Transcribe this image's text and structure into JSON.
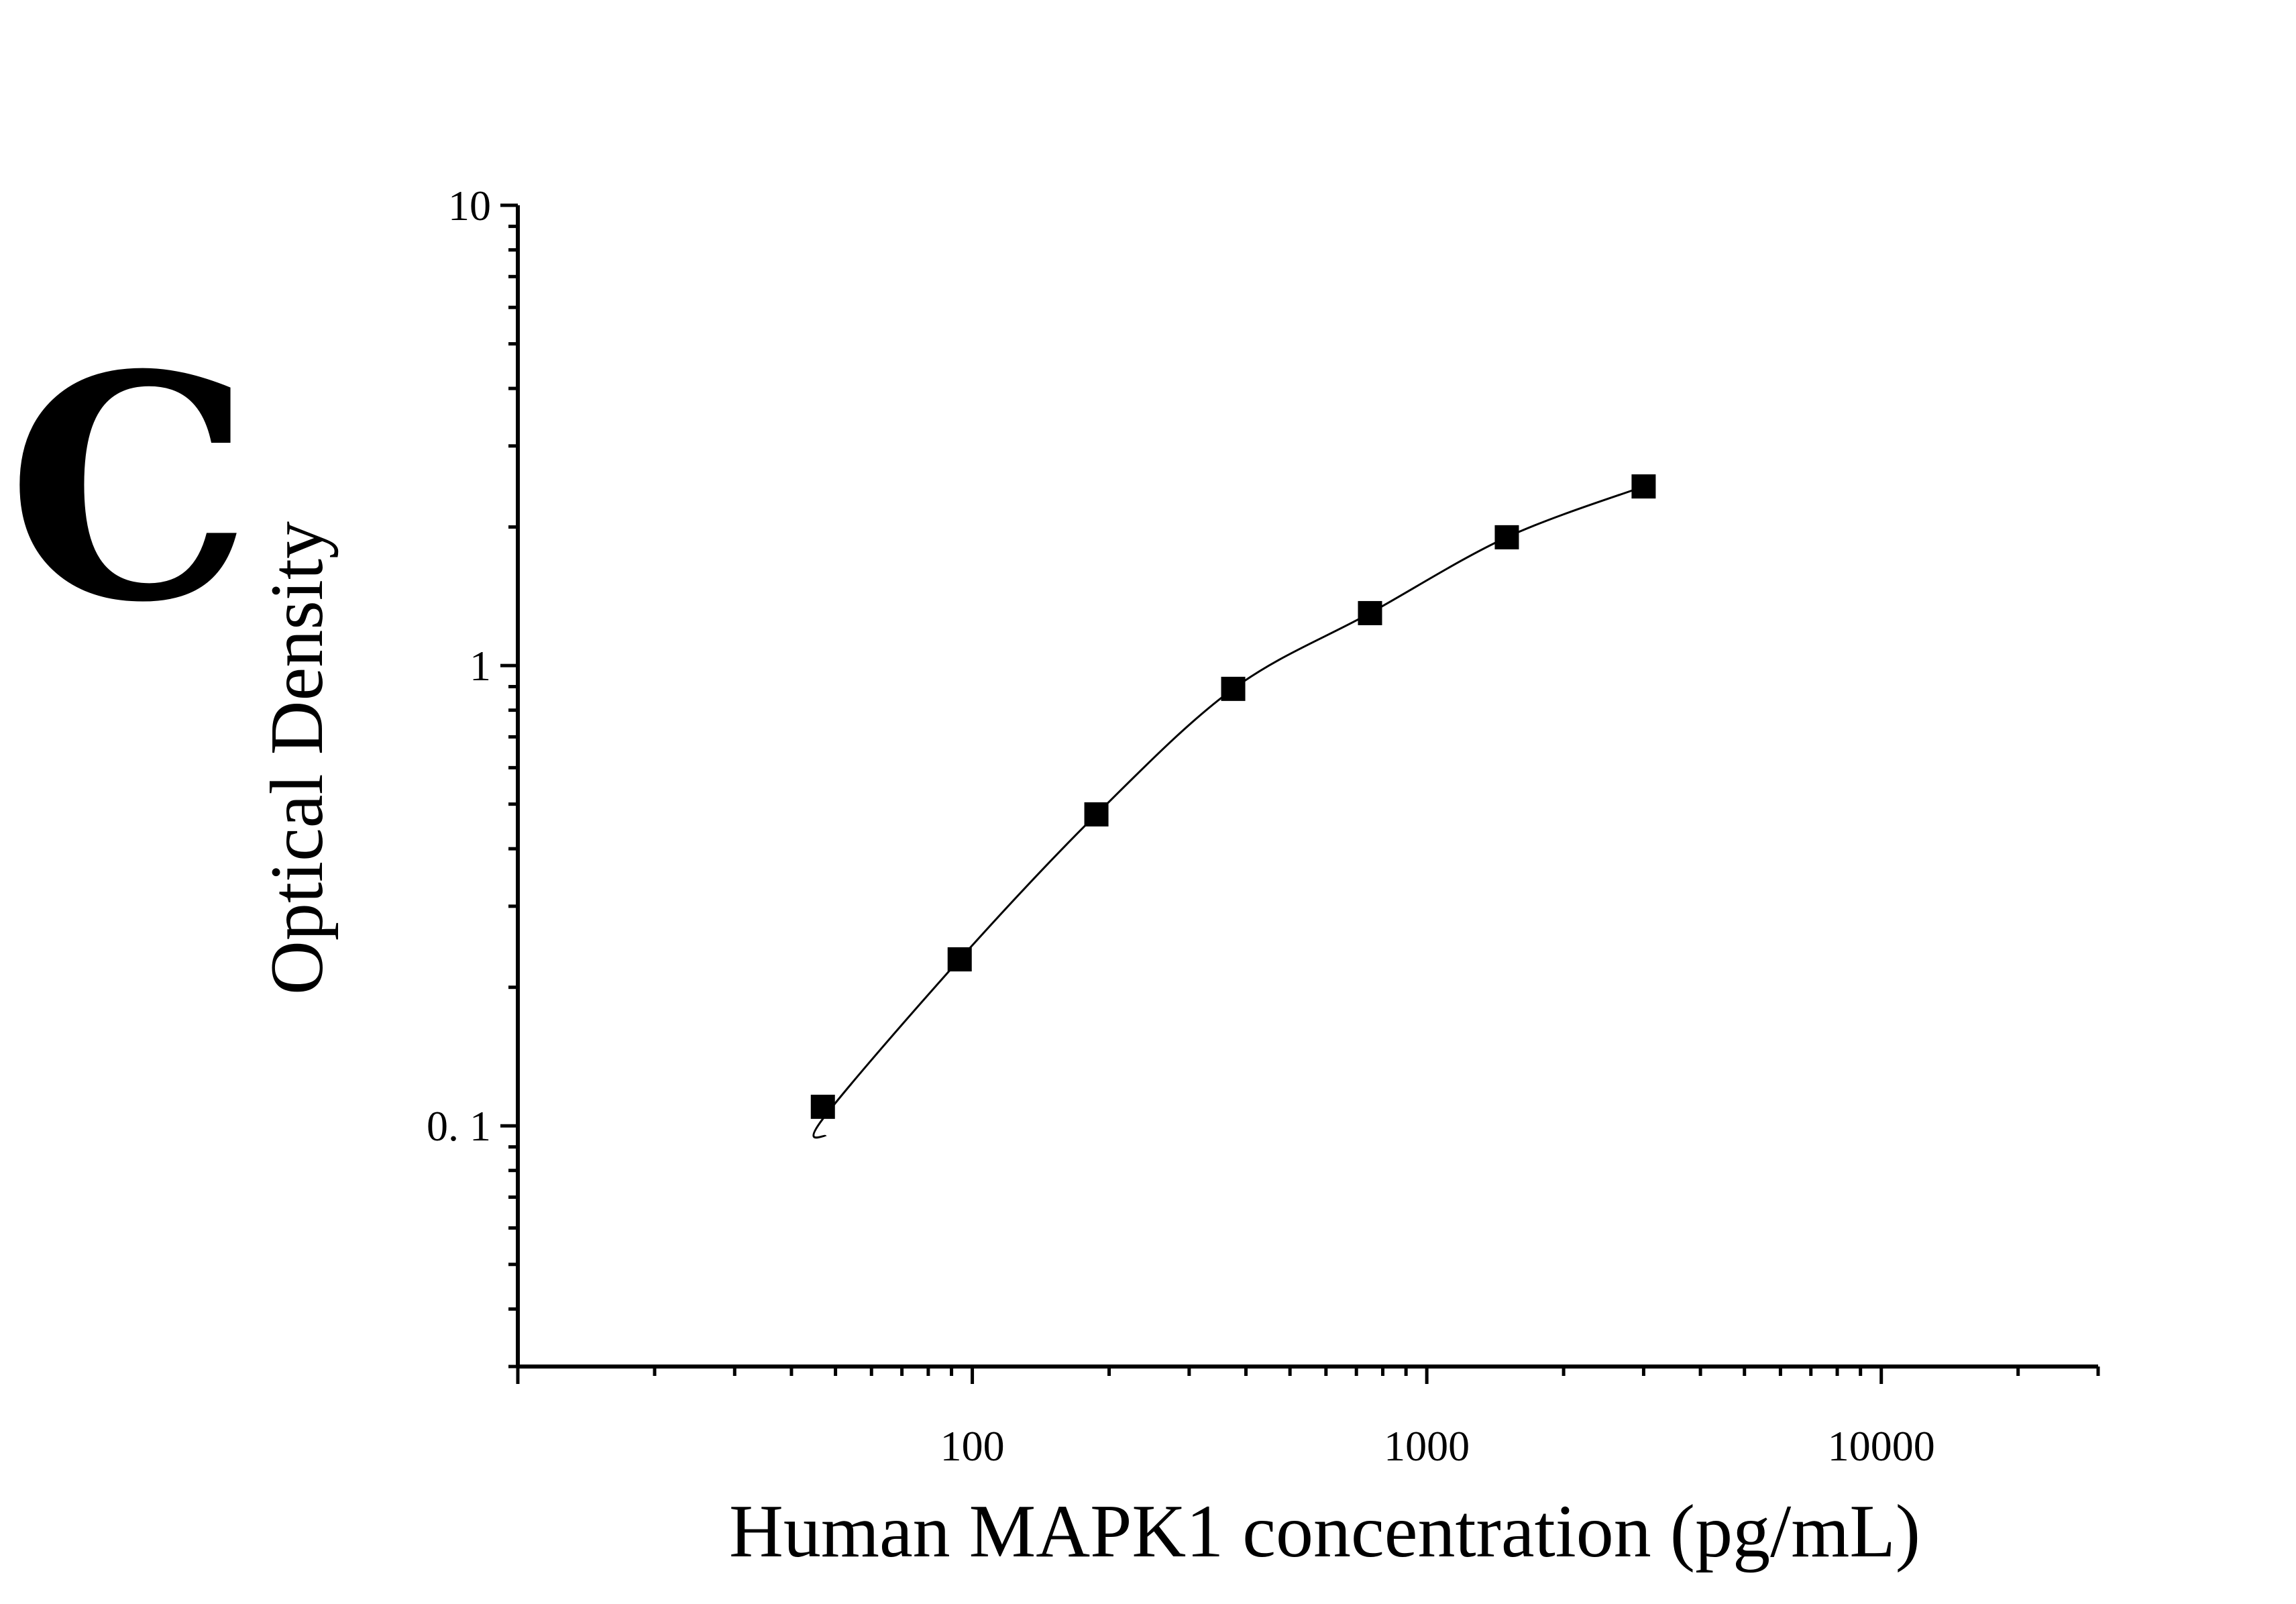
{
  "panel_label": "C",
  "chart_data": {
    "type": "scatter",
    "xlabel": "Human MAPK1 concentration (pg/mL)",
    "ylabel": "Optical Density",
    "xscale": "log",
    "yscale": "log",
    "xlim": [
      10,
      30000
    ],
    "ylim": [
      0.03,
      10
    ],
    "x_ticks": [
      100,
      1000,
      10000
    ],
    "x_tick_labels": [
      "100",
      "1000",
      "10000"
    ],
    "y_ticks": [
      0.1,
      1,
      10
    ],
    "y_tick_labels": [
      "0. 1",
      "1",
      "10"
    ],
    "grid": false,
    "legend": "none",
    "marker": "square",
    "color": "#000000",
    "series": [
      {
        "x": [
          46.9,
          93.8,
          187.5,
          375,
          750,
          1500,
          3000
        ],
        "y": [
          0.11,
          0.23,
          0.475,
          0.89,
          1.3,
          1.9,
          2.45
        ],
        "fit_curve": true
      }
    ]
  }
}
